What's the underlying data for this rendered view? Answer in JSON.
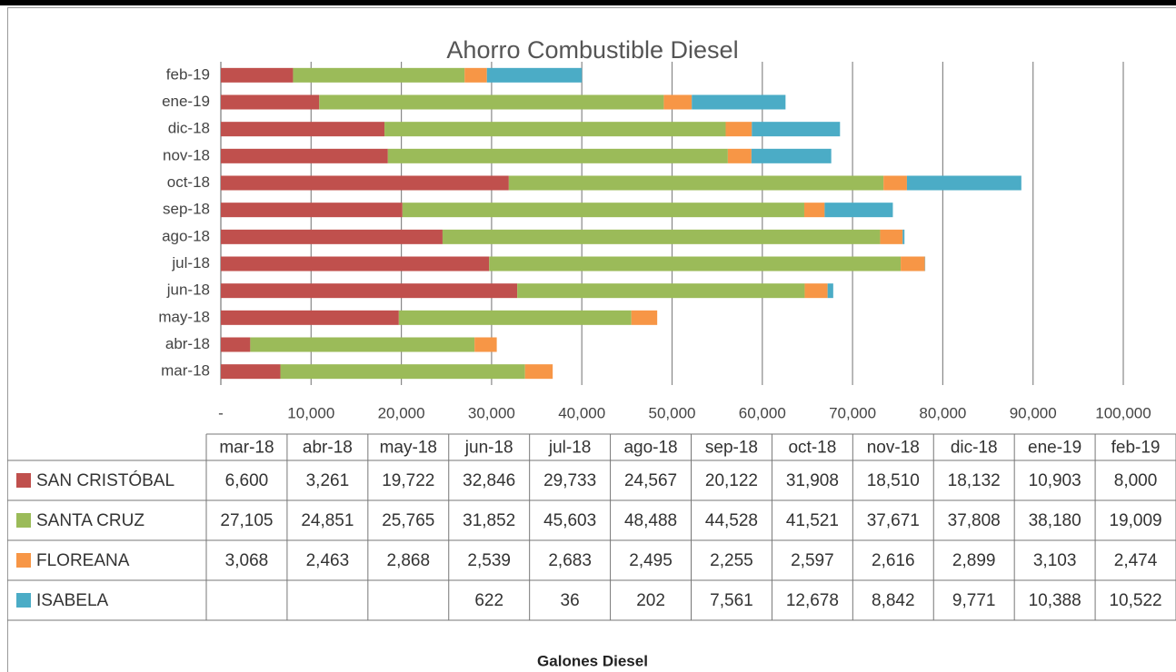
{
  "chart_data": {
    "type": "bar",
    "orientation": "horizontal",
    "stacked": true,
    "title": "Ahorro Combustible Diesel",
    "xlabel": "Galones Diesel",
    "categories": [
      "mar-18",
      "abr-18",
      "may-18",
      "jun-18",
      "jul-18",
      "ago-18",
      "sep-18",
      "oct-18",
      "nov-18",
      "dic-18",
      "ene-19",
      "feb-19"
    ],
    "series": [
      {
        "name": "SAN CRISTÓBAL",
        "color": "#c0504d",
        "values": [
          6600,
          3261,
          19722,
          32846,
          29733,
          24567,
          20122,
          31908,
          18510,
          18132,
          10903,
          8000
        ],
        "value_labels": [
          "6,600",
          "3,261",
          "19,722",
          "32,846",
          "29,733",
          "24,567",
          "20,122",
          "31,908",
          "18,510",
          "18,132",
          "10,903",
          "8,000"
        ]
      },
      {
        "name": "SANTA CRUZ",
        "color": "#9bbb59",
        "values": [
          27105,
          24851,
          25765,
          31852,
          45603,
          48488,
          44528,
          41521,
          37671,
          37808,
          38180,
          19009
        ],
        "value_labels": [
          "27,105",
          "24,851",
          "25,765",
          "31,852",
          "45,603",
          "48,488",
          "44,528",
          "41,521",
          "37,671",
          "37,808",
          "38,180",
          "19,009"
        ]
      },
      {
        "name": "FLOREANA",
        "color": "#f79646",
        "values": [
          3068,
          2463,
          2868,
          2539,
          2683,
          2495,
          2255,
          2597,
          2616,
          2899,
          3103,
          2474
        ],
        "value_labels": [
          "3,068",
          "2,463",
          "2,868",
          "2,539",
          "2,683",
          "2,495",
          "2,255",
          "2,597",
          "2,616",
          "2,899",
          "3,103",
          "2,474"
        ]
      },
      {
        "name": "ISABELA",
        "color": "#4bacc6",
        "values": [
          null,
          null,
          null,
          622,
          36,
          202,
          7561,
          12678,
          8842,
          9771,
          10388,
          10522
        ],
        "value_labels": [
          null,
          null,
          null,
          "622",
          "36",
          "202",
          "7,561",
          "12,678",
          "8,842",
          "9,771",
          "10,388",
          "10,522"
        ]
      }
    ],
    "xlim": [
      0,
      100000
    ],
    "xticks": [
      {
        "value": 0,
        "label": "-"
      },
      {
        "value": 10000,
        "label": "10,000"
      },
      {
        "value": 20000,
        "label": "20,000"
      },
      {
        "value": 30000,
        "label": "30,000"
      },
      {
        "value": 40000,
        "label": "40,000"
      },
      {
        "value": 50000,
        "label": "50,000"
      },
      {
        "value": 60000,
        "label": "60,000"
      },
      {
        "value": 70000,
        "label": "70,000"
      },
      {
        "value": 80000,
        "label": "80,000"
      },
      {
        "value": 90000,
        "label": "90,000"
      },
      {
        "value": 100000,
        "label": "100,000"
      }
    ],
    "grid": true
  }
}
